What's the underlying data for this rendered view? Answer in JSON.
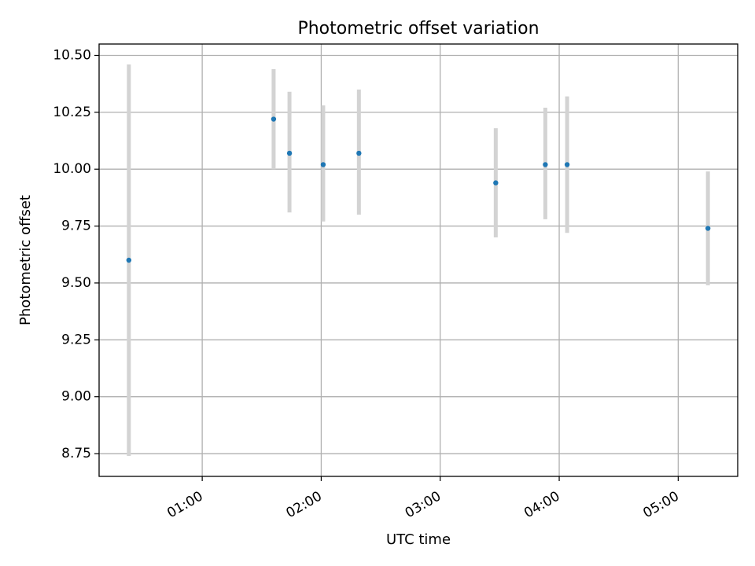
{
  "chart_data": {
    "type": "scatter",
    "title": "Photometric offset variation",
    "xlabel": "UTC time",
    "ylabel": "Photometric offset",
    "x_ticks": [
      "01:00",
      "02:00",
      "03:00",
      "04:00",
      "05:00"
    ],
    "y_ticks": [
      "8.75",
      "9.00",
      "9.25",
      "9.50",
      "9.75",
      "10.00",
      "10.25",
      "10.50"
    ],
    "xlim": [
      "00:08",
      "05:30"
    ],
    "ylim": [
      8.65,
      10.55
    ],
    "grid": true,
    "marker_color": "#1f77b4",
    "errorbar_color": "#d3d3d3",
    "points": [
      {
        "time": "00:23",
        "y": 9.6,
        "err_low": 8.74,
        "err_high": 10.46
      },
      {
        "time": "01:36",
        "y": 10.22,
        "err_low": 10.0,
        "err_high": 10.44
      },
      {
        "time": "01:44",
        "y": 10.07,
        "err_low": 9.81,
        "err_high": 10.34
      },
      {
        "time": "02:01",
        "y": 10.02,
        "err_low": 9.77,
        "err_high": 10.28
      },
      {
        "time": "02:19",
        "y": 10.07,
        "err_low": 9.8,
        "err_high": 10.35
      },
      {
        "time": "03:28",
        "y": 9.94,
        "err_low": 9.7,
        "err_high": 10.18
      },
      {
        "time": "03:53",
        "y": 10.02,
        "err_low": 9.78,
        "err_high": 10.27
      },
      {
        "time": "04:04",
        "y": 10.02,
        "err_low": 9.72,
        "err_high": 10.32
      },
      {
        "time": "05:15",
        "y": 9.74,
        "err_low": 9.49,
        "err_high": 9.99
      }
    ]
  }
}
